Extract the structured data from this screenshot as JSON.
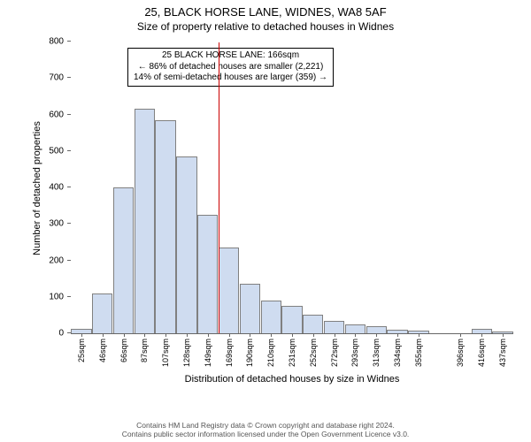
{
  "title_main": "25, BLACK HORSE LANE, WIDNES, WA8 5AF",
  "title_sub": "Size of property relative to detached houses in Widnes",
  "chart": {
    "type": "histogram",
    "ylabel": "Number of detached properties",
    "xlabel": "Distribution of detached houses by size in Widnes",
    "ylim": [
      0,
      800
    ],
    "ytick_step": 100,
    "xticks": [
      "25sqm",
      "46sqm",
      "66sqm",
      "87sqm",
      "107sqm",
      "128sqm",
      "149sqm",
      "169sqm",
      "190sqm",
      "210sqm",
      "231sqm",
      "252sqm",
      "272sqm",
      "293sqm",
      "313sqm",
      "334sqm",
      "355sqm",
      "",
      "396sqm",
      "416sqm",
      "437sqm"
    ],
    "values": [
      12,
      110,
      400,
      615,
      585,
      485,
      325,
      235,
      135,
      90,
      75,
      50,
      35,
      25,
      20,
      10,
      8,
      0,
      0,
      12,
      5
    ],
    "bar_fill": "#cfdcf0",
    "bar_stroke": "#808080",
    "plot_background": "#ffffff",
    "axis_color": "#666666",
    "reference_line": {
      "index": 7,
      "color": "#cc0000"
    },
    "annotation": {
      "line1": "25 BLACK HORSE LANE: 166sqm",
      "line2": "← 86% of detached houses are smaller (2,221)",
      "line3": "14% of semi-detached houses are larger (359) →",
      "border_color": "#000000",
      "background": "#ffffff",
      "fontsize": 10
    }
  },
  "footer": {
    "line1": "Contains HM Land Registry data © Crown copyright and database right 2024.",
    "line2": "Contains public sector information licensed under the Open Government Licence v3.0."
  }
}
